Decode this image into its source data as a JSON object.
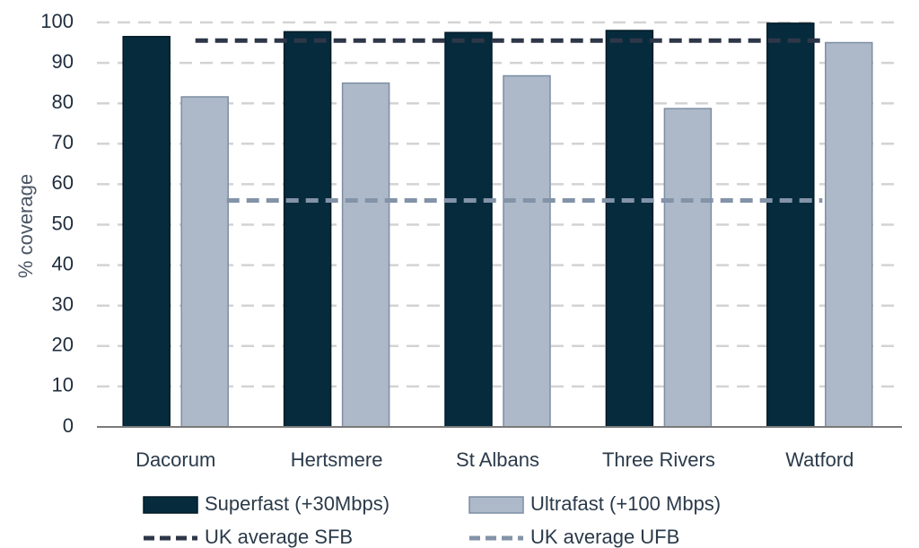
{
  "chart_data": {
    "type": "bar",
    "title": "",
    "xlabel": "",
    "ylabel": "% coverage",
    "ylim": [
      0,
      100
    ],
    "yticks": [
      0,
      10,
      20,
      30,
      40,
      50,
      60,
      70,
      80,
      90,
      100
    ],
    "categories": [
      "Dacorum",
      "Hertsmere",
      "St Albans",
      "Three Rivers",
      "Watford"
    ],
    "series": [
      {
        "name": "Superfast (+30Mbps)",
        "values": [
          96.5,
          97.7,
          97.5,
          98.0,
          99.8
        ],
        "color": "#062b3d"
      },
      {
        "name": "Ultrafast (+100 Mbps)",
        "values": [
          81.6,
          85.0,
          86.8,
          78.7,
          95.0
        ],
        "color": "#adb9c9"
      }
    ],
    "reference_lines": [
      {
        "name": "UK average SFB",
        "value": 95.5,
        "color": "#2e3748",
        "style": "dashed"
      },
      {
        "name": "UK average UFB",
        "value": 56.0,
        "color": "#8393a8",
        "style": "dashed"
      }
    ],
    "grid": true,
    "legend_position": "bottom"
  }
}
